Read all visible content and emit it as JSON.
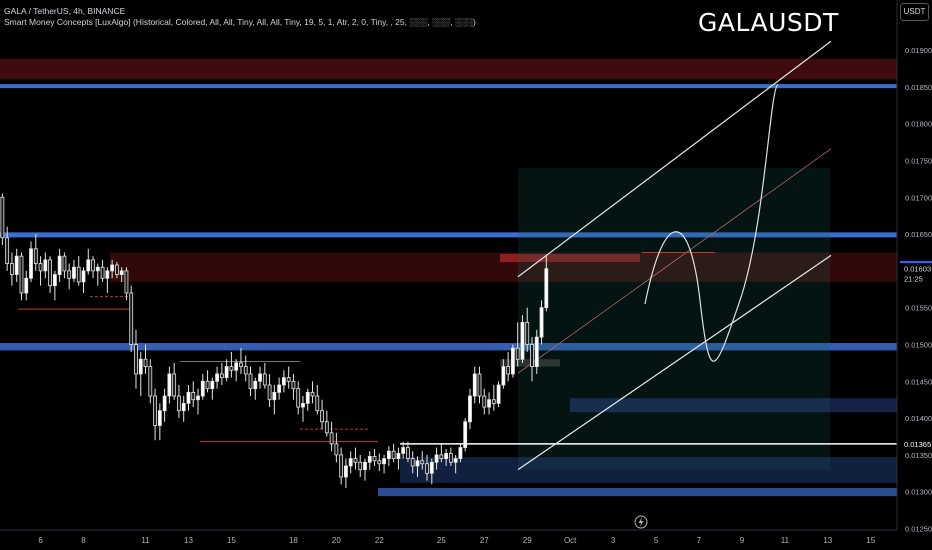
{
  "header": {
    "line1": "GALA / TetherUS, 4h, BINANCE",
    "line2": "Smart Money Concepts [LuxAlgo] (Historical, Colored, All, All, Tiny, All, All, Tiny, 19, 5, 1, Atr, 2, 0, Tiny, , 25, ░░░, ░░░, ░░░)"
  },
  "symbol_title": "GALAUSDT",
  "currency_button": "USDT",
  "chart_data": {
    "type": "candlestick",
    "title": "GALAUSDT",
    "ylim": [
      0.01248,
      0.01968
    ],
    "y_ticks": [
      "0.01900",
      "0.01850",
      "0.01800",
      "0.01750",
      "0.01700",
      "0.01650",
      "0.01550",
      "0.01500",
      "0.01450",
      "0.01400",
      "0.01350",
      "0.01300",
      "0.01250"
    ],
    "x_ticks": [
      {
        "label": "6",
        "i": 8
      },
      {
        "label": "8",
        "i": 17
      },
      {
        "label": "11",
        "i": 30
      },
      {
        "label": "13",
        "i": 39
      },
      {
        "label": "15",
        "i": 48
      },
      {
        "label": "18",
        "i": 61
      },
      {
        "label": "20",
        "i": 70
      },
      {
        "label": "22",
        "i": 79
      },
      {
        "label": "25",
        "i": 92
      },
      {
        "label": "27",
        "i": 101
      },
      {
        "label": "29",
        "i": 110
      },
      {
        "label": "Oct",
        "i": 119
      },
      {
        "label": "3",
        "i": 128
      },
      {
        "label": "5",
        "i": 137
      },
      {
        "label": "7",
        "i": 146
      },
      {
        "label": "9",
        "i": 155
      },
      {
        "label": "11",
        "i": 164
      },
      {
        "label": "13",
        "i": 173
      },
      {
        "label": "15",
        "i": 182
      }
    ],
    "x_slots": 188,
    "price_tags": [
      {
        "value": 0.01606,
        "label": "0.01606",
        "bg": "#2962ff",
        "fg": "#ffffff"
      },
      {
        "value": 0.01603,
        "label": "0.01603",
        "bg": "#000000",
        "fg": "#d1d4dc"
      },
      {
        "value": 0.0159,
        "label": "21:25",
        "bg": "#000000",
        "fg": "#d1d4dc"
      },
      {
        "value": 0.01365,
        "label": "0.01365",
        "bg": "#000000",
        "fg": "#ffffff"
      }
    ],
    "candles": [
      [
        0.017,
        0.01705,
        0.01635,
        0.01645
      ],
      [
        0.01645,
        0.0166,
        0.016,
        0.0161
      ],
      [
        0.0161,
        0.01625,
        0.0158,
        0.01595
      ],
      [
        0.01595,
        0.0163,
        0.01585,
        0.0162
      ],
      [
        0.0162,
        0.01625,
        0.0156,
        0.0157
      ],
      [
        0.0157,
        0.016,
        0.0156,
        0.0159
      ],
      [
        0.0159,
        0.0164,
        0.01585,
        0.0163
      ],
      [
        0.0163,
        0.0165,
        0.016,
        0.0161
      ],
      [
        0.0161,
        0.0162,
        0.0158,
        0.016
      ],
      [
        0.016,
        0.01625,
        0.0159,
        0.01615
      ],
      [
        0.01615,
        0.0162,
        0.0157,
        0.0158
      ],
      [
        0.0158,
        0.016,
        0.0156,
        0.01595
      ],
      [
        0.01595,
        0.0163,
        0.01585,
        0.0162
      ],
      [
        0.0162,
        0.01625,
        0.0159,
        0.016
      ],
      [
        0.016,
        0.0161,
        0.01575,
        0.0159
      ],
      [
        0.0159,
        0.01615,
        0.01585,
        0.01605
      ],
      [
        0.01605,
        0.0162,
        0.0158,
        0.01585
      ],
      [
        0.01585,
        0.01605,
        0.0157,
        0.016
      ],
      [
        0.016,
        0.0163,
        0.01595,
        0.01615
      ],
      [
        0.01615,
        0.0162,
        0.0159,
        0.016
      ],
      [
        0.016,
        0.0161,
        0.0158,
        0.01605
      ],
      [
        0.01605,
        0.01615,
        0.01585,
        0.0159
      ],
      [
        0.0159,
        0.01605,
        0.0157,
        0.016
      ],
      [
        0.016,
        0.01615,
        0.0159,
        0.01608
      ],
      [
        0.01608,
        0.01612,
        0.0159,
        0.01595
      ],
      [
        0.01595,
        0.01605,
        0.01585,
        0.016
      ],
      [
        0.016,
        0.01605,
        0.0156,
        0.0157
      ],
      [
        0.0157,
        0.0158,
        0.0149,
        0.015
      ],
      [
        0.015,
        0.0152,
        0.0144,
        0.0146
      ],
      [
        0.0146,
        0.0149,
        0.0143,
        0.0148
      ],
      [
        0.0148,
        0.015,
        0.0146,
        0.0147
      ],
      [
        0.0147,
        0.0148,
        0.0142,
        0.0143
      ],
      [
        0.0143,
        0.0144,
        0.0137,
        0.0139
      ],
      [
        0.0139,
        0.0142,
        0.0137,
        0.0141
      ],
      [
        0.0141,
        0.0144,
        0.01395,
        0.0143
      ],
      [
        0.0143,
        0.0147,
        0.0142,
        0.0146
      ],
      [
        0.0146,
        0.01475,
        0.01425,
        0.0143
      ],
      [
        0.0143,
        0.01445,
        0.014,
        0.0141
      ],
      [
        0.0141,
        0.0143,
        0.01395,
        0.0142
      ],
      [
        0.0142,
        0.01445,
        0.0141,
        0.01435
      ],
      [
        0.01435,
        0.0145,
        0.01415,
        0.01425
      ],
      [
        0.01425,
        0.0144,
        0.01405,
        0.0143
      ],
      [
        0.0143,
        0.0146,
        0.01425,
        0.0145
      ],
      [
        0.0145,
        0.01465,
        0.01435,
        0.0144
      ],
      [
        0.0144,
        0.01455,
        0.01425,
        0.0145
      ],
      [
        0.0145,
        0.0147,
        0.0144,
        0.0146
      ],
      [
        0.0146,
        0.01475,
        0.01445,
        0.01455
      ],
      [
        0.01455,
        0.0148,
        0.0145,
        0.0147
      ],
      [
        0.0147,
        0.0149,
        0.01455,
        0.01465
      ],
      [
        0.01465,
        0.0148,
        0.0145,
        0.01475
      ],
      [
        0.01475,
        0.01495,
        0.0146,
        0.0147
      ],
      [
        0.0147,
        0.01485,
        0.0145,
        0.0146
      ],
      [
        0.0146,
        0.0147,
        0.0143,
        0.0144
      ],
      [
        0.0144,
        0.01455,
        0.01425,
        0.0145
      ],
      [
        0.0145,
        0.0147,
        0.0144,
        0.0146
      ],
      [
        0.0146,
        0.01475,
        0.0144,
        0.01445
      ],
      [
        0.01445,
        0.0146,
        0.01415,
        0.01425
      ],
      [
        0.01425,
        0.01445,
        0.01405,
        0.01435
      ],
      [
        0.01435,
        0.01455,
        0.01425,
        0.01445
      ],
      [
        0.01445,
        0.01465,
        0.01435,
        0.01455
      ],
      [
        0.01455,
        0.0147,
        0.0144,
        0.0145
      ],
      [
        0.0145,
        0.0146,
        0.01425,
        0.0144
      ],
      [
        0.0144,
        0.0145,
        0.01405,
        0.01415
      ],
      [
        0.01415,
        0.0143,
        0.01395,
        0.0142
      ],
      [
        0.0142,
        0.0144,
        0.0141,
        0.01435
      ],
      [
        0.01435,
        0.0145,
        0.0142,
        0.0143
      ],
      [
        0.0143,
        0.01445,
        0.01405,
        0.0141
      ],
      [
        0.0141,
        0.01425,
        0.01385,
        0.01395
      ],
      [
        0.01395,
        0.0141,
        0.01375,
        0.0138
      ],
      [
        0.0138,
        0.01395,
        0.01355,
        0.01365
      ],
      [
        0.01365,
        0.0138,
        0.0134,
        0.0135
      ],
      [
        0.0135,
        0.0136,
        0.0131,
        0.0132
      ],
      [
        0.0132,
        0.01345,
        0.01305,
        0.01335
      ],
      [
        0.01335,
        0.01355,
        0.01325,
        0.01345
      ],
      [
        0.01345,
        0.0136,
        0.0133,
        0.0134
      ],
      [
        0.0134,
        0.0135,
        0.0132,
        0.0133
      ],
      [
        0.0133,
        0.01345,
        0.01315,
        0.0134
      ],
      [
        0.0134,
        0.01355,
        0.0133,
        0.01348
      ],
      [
        0.01348,
        0.01358,
        0.01335,
        0.01342
      ],
      [
        0.01342,
        0.01352,
        0.01328,
        0.01338
      ],
      [
        0.01338,
        0.0135,
        0.01325,
        0.01345
      ],
      [
        0.01345,
        0.01362,
        0.01335,
        0.01355
      ],
      [
        0.01355,
        0.01365,
        0.0134,
        0.01345
      ],
      [
        0.01345,
        0.0136,
        0.0133,
        0.01352
      ],
      [
        0.01352,
        0.01368,
        0.01345,
        0.0136
      ],
      [
        0.0136,
        0.01368,
        0.0134,
        0.01345
      ],
      [
        0.01345,
        0.01355,
        0.01325,
        0.01335
      ],
      [
        0.01335,
        0.01348,
        0.0132,
        0.01342
      ],
      [
        0.01342,
        0.01355,
        0.0133,
        0.01338
      ],
      [
        0.01338,
        0.0135,
        0.01315,
        0.01325
      ],
      [
        0.01325,
        0.01345,
        0.0131,
        0.0134
      ],
      [
        0.0134,
        0.0136,
        0.0133,
        0.0135
      ],
      [
        0.0135,
        0.01365,
        0.0134,
        0.01345
      ],
      [
        0.01345,
        0.01358,
        0.01335,
        0.01352
      ],
      [
        0.01352,
        0.0136,
        0.01335,
        0.0134
      ],
      [
        0.0134,
        0.0135,
        0.01325,
        0.01345
      ],
      [
        0.01345,
        0.01365,
        0.0134,
        0.0136
      ],
      [
        0.0136,
        0.014,
        0.01355,
        0.01395
      ],
      [
        0.01395,
        0.0144,
        0.01385,
        0.0143
      ],
      [
        0.0143,
        0.0147,
        0.0142,
        0.0146
      ],
      [
        0.0146,
        0.0147,
        0.0142,
        0.0143
      ],
      [
        0.0143,
        0.0144,
        0.01405,
        0.01415
      ],
      [
        0.01415,
        0.01435,
        0.01405,
        0.01425
      ],
      [
        0.01425,
        0.01445,
        0.0141,
        0.0142
      ],
      [
        0.0142,
        0.0145,
        0.01415,
        0.01445
      ],
      [
        0.01445,
        0.0148,
        0.0144,
        0.0147
      ],
      [
        0.0147,
        0.0149,
        0.0145,
        0.0146
      ],
      [
        0.0146,
        0.015,
        0.01455,
        0.01495
      ],
      [
        0.01495,
        0.0153,
        0.0147,
        0.0148
      ],
      [
        0.0148,
        0.0154,
        0.01475,
        0.0153
      ],
      [
        0.0153,
        0.0155,
        0.0149,
        0.015
      ],
      [
        0.015,
        0.0151,
        0.0145,
        0.0147
      ],
      [
        0.0147,
        0.0152,
        0.0146,
        0.0151
      ],
      [
        0.0151,
        0.0156,
        0.015,
        0.0155
      ],
      [
        0.0155,
        0.0162,
        0.01545,
        0.01603
      ]
    ]
  }
}
